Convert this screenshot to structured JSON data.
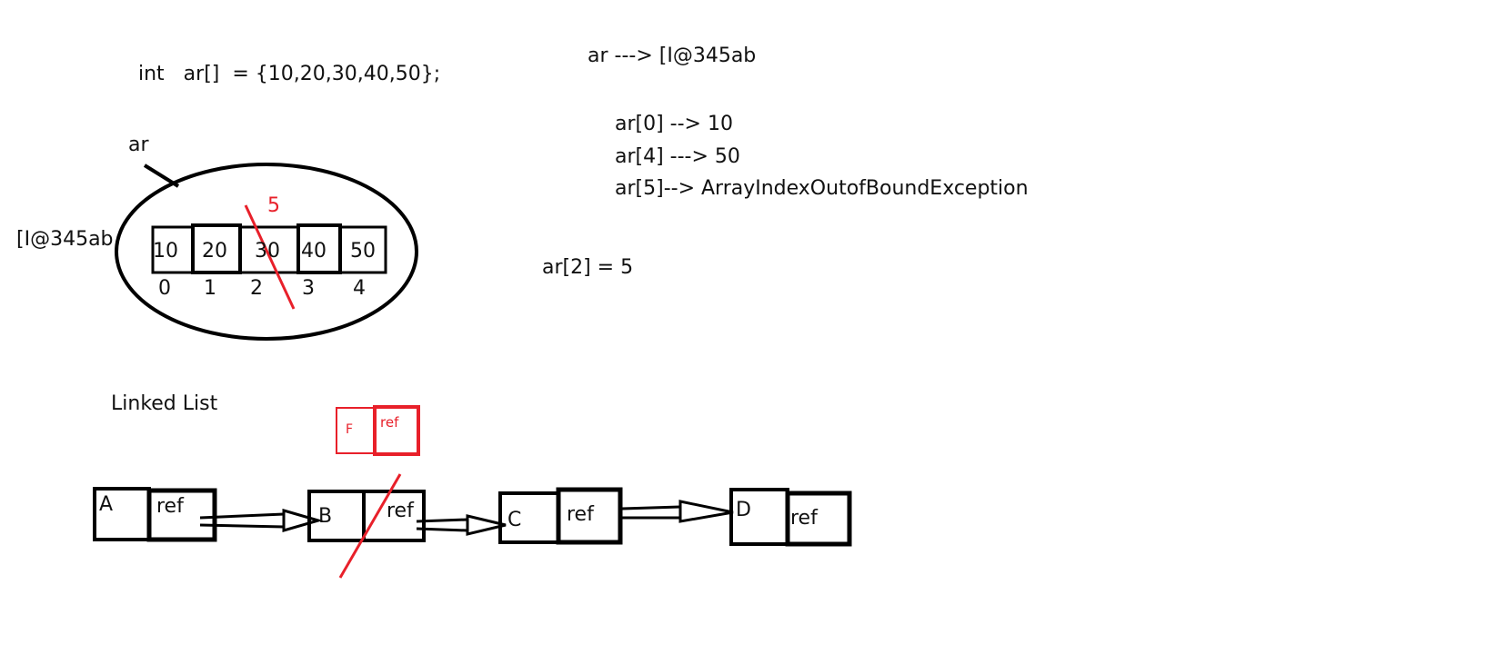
{
  "code": {
    "declaration": "int   ar[]  = {10,20,30,40,50};",
    "reference": "ar ---> [I@345ab",
    "access_0": "ar[0] --> 10",
    "access_4": "ar[4] ---> 50",
    "access_5": "ar[5]--> ArrayIndexOutofBoundException",
    "assignment": "ar[2] = 5"
  },
  "array": {
    "var_label": "ar",
    "address_label": "[I@345ab",
    "values": [
      "10",
      "20",
      "30",
      "40",
      "50"
    ],
    "indices": [
      "0",
      "1",
      "2",
      "3",
      "4"
    ],
    "new_value": "5"
  },
  "linked_list": {
    "title": "Linked List",
    "nodes": [
      {
        "data": "A",
        "ref": "ref"
      },
      {
        "data": "B",
        "ref": "ref"
      },
      {
        "data": "C",
        "ref": "ref"
      },
      {
        "data": "D",
        "ref": "ref"
      }
    ],
    "inserted_node": {
      "data": "F",
      "ref": "ref"
    }
  },
  "colors": {
    "ink": "#000000",
    "annotation": "#e8202a"
  }
}
